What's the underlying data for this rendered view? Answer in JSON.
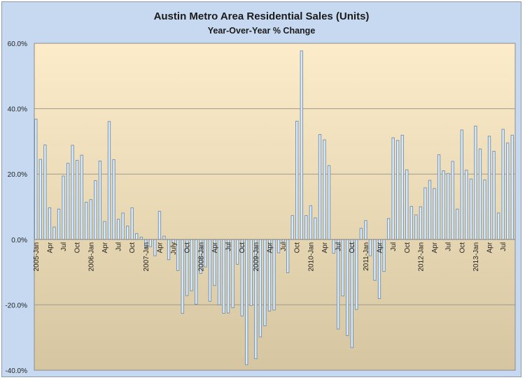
{
  "chart_data": {
    "type": "bar",
    "title": "Austin Metro Area Residential Sales (Units)",
    "subtitle": "Year-Over-Year % Change",
    "xlabel": "",
    "ylabel": "",
    "ylim": [
      -40,
      60
    ],
    "yticks": [
      -40,
      -20,
      0,
      20,
      40,
      60
    ],
    "ytick_labels": [
      "-40.0%",
      "-20.0%",
      "0.0%",
      "20.0%",
      "40.0%",
      "60.0%"
    ],
    "grid": true,
    "legend": "none",
    "start": "2005-01",
    "categories": [
      "2005-Jan",
      "Feb",
      "Mar",
      "Apr",
      "May",
      "Jun",
      "Jul",
      "Aug",
      "Sep",
      "Oct",
      "Nov",
      "Dec",
      "2006-Jan",
      "Feb",
      "Mar",
      "Apr",
      "May",
      "Jun",
      "Jul",
      "Aug",
      "Sep",
      "Oct",
      "Nov",
      "Dec",
      "2007-Jan",
      "Feb",
      "Mar",
      "Apr",
      "May",
      "Jun",
      "July",
      "Aug",
      "Sep",
      "Oct",
      "Nov",
      "Dec",
      "2008-Jan",
      "Feb",
      "Mar",
      "Apr",
      "May",
      "Jun",
      "Jul",
      "Aug",
      "Sep",
      "Oct",
      "Nov",
      "Dec",
      "2009-Jan",
      "Feb",
      "Mar",
      "Apr",
      "May",
      "Jun",
      "Jul",
      "Aug",
      "Sep",
      "Oct",
      "Nov",
      "Dec",
      "2010-Jan",
      "Feb",
      "Mar",
      "Apr",
      "May",
      "Jun",
      "Jul",
      "Aug",
      "Sep",
      "Oct",
      "Nov",
      "Dec",
      "2011-Jan",
      "Feb",
      "Mar",
      "Apr",
      "May",
      "Jun",
      "Jul",
      "Aug",
      "Sep",
      "Oct",
      "Nov",
      "Dec",
      "2012-Jan",
      "Feb",
      "Mar",
      "Apr",
      "May",
      "Jun",
      "Jul",
      "Aug",
      "Sep",
      "Oct",
      "Nov",
      "Dec",
      "2013-Jan",
      "Feb",
      "Mar",
      "Apr",
      "May",
      "Jun",
      "Jul",
      "Aug",
      "Sep"
    ],
    "x_tick_labels": [
      "2005-Jan",
      "Apr",
      "Jul",
      "Oct",
      "2006-Jan",
      "Apr",
      "Jul",
      "Oct",
      "2007-Jan",
      "Apr",
      "July",
      "Oct",
      "2008-Jan",
      "Apr",
      "Jul",
      "Oct",
      "2009-Jan",
      "Apr",
      "Jul",
      "Oct",
      "2010-Jan",
      "Apr",
      "Jul",
      "Oct",
      "2011-Jan",
      "Apr",
      "Jul",
      "Oct",
      "2012-Jan",
      "Apr",
      "Jul",
      "Oct",
      "2013-Jan",
      "Apr",
      "Jul"
    ],
    "series": [
      {
        "name": "YoY % Change",
        "values": [
          36.8,
          24.5,
          28.9,
          9.7,
          3.8,
          9.3,
          19.4,
          23.3,
          28.8,
          24.2,
          25.8,
          11.4,
          12.2,
          18.0,
          24.0,
          5.5,
          36.1,
          24.4,
          6.2,
          8.1,
          4.1,
          9.7,
          1.8,
          0.7,
          -2.6,
          -2.2,
          -5.0,
          8.6,
          1.0,
          -6.2,
          -1.1,
          -9.5,
          -22.6,
          -17.2,
          -15.7,
          -19.8,
          -10.4,
          -8.4,
          -18.9,
          -14.1,
          -20.0,
          -22.6,
          -22.5,
          -20.9,
          -7.6,
          -23.4,
          -38.3,
          -20.2,
          -36.5,
          -29.8,
          -26.4,
          -21.9,
          -21.6,
          -4.1,
          -0.7,
          -10.2,
          7.3,
          36.2,
          57.7,
          7.3,
          10.3,
          6.6,
          32.1,
          30.5,
          22.6,
          -4.2,
          -27.4,
          -17.3,
          -29.4,
          -33.1,
          -21.4,
          3.4,
          5.8,
          -5.0,
          -12.5,
          -18.1,
          -9.8,
          6.4,
          31.1,
          30.3,
          31.9,
          21.3,
          10.1,
          7.5,
          10.0,
          15.8,
          18.1,
          15.6,
          25.9,
          21.0,
          20.2,
          23.9,
          9.3,
          33.5,
          21.2,
          18.5,
          34.7,
          27.7,
          18.2,
          31.6,
          27.0,
          8.1,
          33.7,
          29.5,
          31.9
        ]
      }
    ]
  },
  "colors": {
    "frame_bg": "#c6d9f1",
    "plot_top": "#fdecca",
    "plot_bottom": "#d5c6a1",
    "bar_fill": "#dbe8f6",
    "bar_stroke": "#6e8fb0",
    "gridline": "#a09a8c"
  }
}
